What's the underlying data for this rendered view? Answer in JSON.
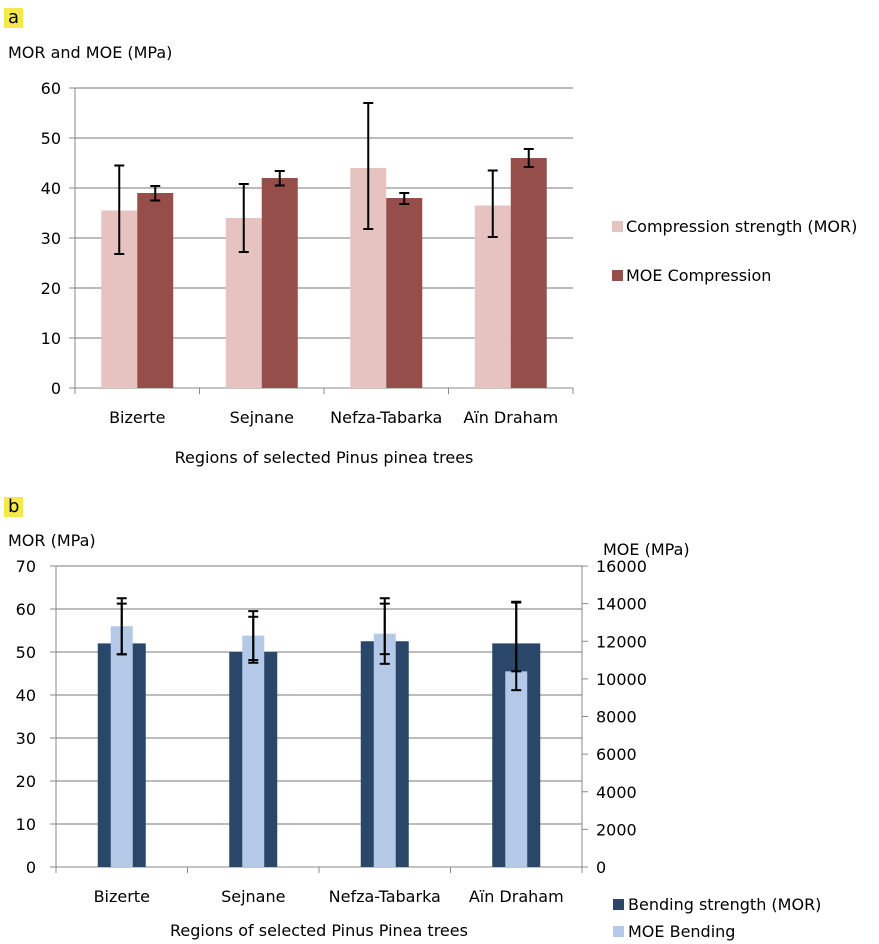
{
  "chart_data": [
    {
      "panel": "a",
      "type": "bar",
      "ylabel": "MOR and MOE (MPa)",
      "xlabel": "Regions of selected Pinus pinea trees",
      "categories": [
        "Bizerte",
        "Sejnane",
        "Nefza-Tabarka",
        "Aïn Draham"
      ],
      "ylim": [
        0,
        60
      ],
      "yticks": [
        "0",
        "10",
        "20",
        "30",
        "40",
        "50",
        "60"
      ],
      "grid": true,
      "legend_position": "right",
      "series": [
        {
          "name": "Compression strength (MOR)",
          "color": "#e6c3c1",
          "values": [
            35.5,
            34,
            44,
            36.5
          ],
          "error_low": [
            26.8,
            27.2,
            31.8,
            30.2
          ],
          "error_high": [
            44.5,
            40.8,
            57,
            43.5
          ]
        },
        {
          "name": "MOE Compression",
          "color": "#954e4a",
          "values": [
            39,
            42,
            38,
            46
          ],
          "error_low": [
            37.5,
            40.5,
            36.8,
            44.2
          ],
          "error_high": [
            40.4,
            43.4,
            39,
            47.8
          ]
        }
      ]
    },
    {
      "panel": "b",
      "type": "bar",
      "ylabel": "MOR (MPa)",
      "y2label": "MOE (MPa)",
      "xlabel": "Regions of selected Pinus Pinea trees",
      "categories": [
        "Bizerte",
        "Sejnane",
        "Nefza-Tabarka",
        "Aïn Draham"
      ],
      "ylim": [
        0,
        70
      ],
      "yticks": [
        "0",
        "10",
        "20",
        "30",
        "40",
        "50",
        "60",
        "70"
      ],
      "y2lim": [
        0,
        16000
      ],
      "y2ticks": [
        "0",
        "2000",
        "4000",
        "6000",
        "8000",
        "10000",
        "12000",
        "14000",
        "16000"
      ],
      "grid": true,
      "legend_position": "bottom-right",
      "series": [
        {
          "name": "Bending strength (MOR)",
          "color": "#2a4669",
          "axis": "left",
          "values": [
            52,
            50,
            52.5,
            52
          ],
          "error_low": [
            49.5,
            47.5,
            49.5,
            45.5
          ],
          "error_high": [
            62.5,
            59.5,
            62.5,
            61.5
          ]
        },
        {
          "name": "MOE Bending",
          "color": "#b4c8e8",
          "axis": "right",
          "values": [
            12800,
            12300,
            12400,
            10400
          ],
          "error_low": [
            11300,
            11000,
            10800,
            9400
          ],
          "error_high": [
            14000,
            13300,
            14000,
            14100
          ]
        }
      ]
    }
  ],
  "panels": {
    "a": "a",
    "b": "b"
  }
}
